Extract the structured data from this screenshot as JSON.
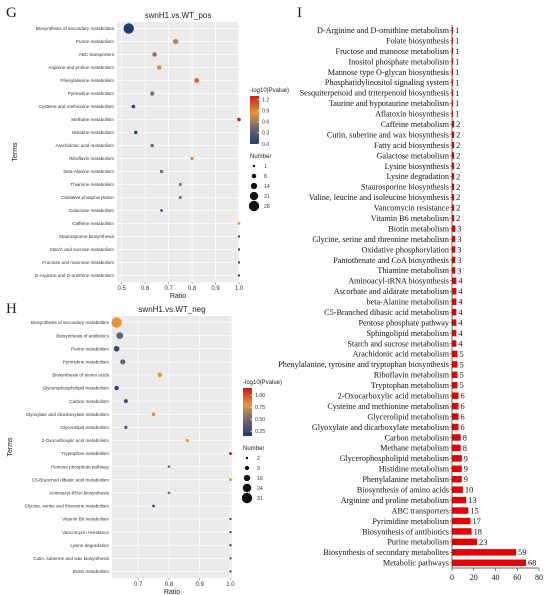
{
  "panel_letters": {
    "g": "G",
    "h": "H",
    "i": "I"
  },
  "chart_data": [
    {
      "type": "scatter",
      "panel": "G",
      "title": "swnH1.vs.WT_pos",
      "xlabel": "Ratio",
      "ylabel": "Terms",
      "xlim": [
        0.48,
        1.0
      ],
      "xticks": [
        "0.5",
        "0.6",
        "0.7",
        "0.8",
        "0.9",
        "1.0"
      ],
      "xtick_values": [
        0.5,
        0.6,
        0.7,
        0.8,
        0.9,
        1.0
      ],
      "grid": true,
      "color_legend": {
        "title": "-log10(Pvalue)",
        "ticks": [
          "1.2",
          "0.9",
          "0.6",
          "0.3",
          "0.0"
        ],
        "range": [
          0.0,
          1.3
        ]
      },
      "size_legend": {
        "title": "Number",
        "ticks": [
          "1",
          "8",
          "14",
          "21",
          "28"
        ]
      },
      "points": [
        {
          "term": "Biosynthesis of secondary metabolites",
          "ratio": 0.53,
          "neglog10p": 0.0,
          "number": 28
        },
        {
          "term": "Purine metabolism",
          "ratio": 0.73,
          "neglog10p": 0.7,
          "number": 11
        },
        {
          "term": "ABC transporters",
          "ratio": 0.64,
          "neglog10p": 0.55,
          "number": 8
        },
        {
          "term": "Arginine and proline metabolism",
          "ratio": 0.66,
          "neglog10p": 0.8,
          "number": 8
        },
        {
          "term": "Phenylalanine metabolism",
          "ratio": 0.82,
          "neglog10p": 1.05,
          "number": 9
        },
        {
          "term": "Pyrimidine metabolism",
          "ratio": 0.63,
          "neglog10p": 0.5,
          "number": 7
        },
        {
          "term": "Cysteine and methionine metabolism",
          "ratio": 0.55,
          "neglog10p": 0.05,
          "number": 5
        },
        {
          "term": "Methane metabolism",
          "ratio": 1.0,
          "neglog10p": 1.3,
          "number": 5
        },
        {
          "term": "Histidine metabolism",
          "ratio": 0.56,
          "neglog10p": 0.05,
          "number": 5
        },
        {
          "term": "Arachidonic acid metabolism",
          "ratio": 0.63,
          "neglog10p": 0.45,
          "number": 5
        },
        {
          "term": "Riboflavin metabolism",
          "ratio": 0.8,
          "neglog10p": 0.75,
          "number": 4
        },
        {
          "term": "beta-Alanine metabolism",
          "ratio": 0.67,
          "neglog10p": 0.45,
          "number": 4
        },
        {
          "term": "Thiamine metabolism",
          "ratio": 0.75,
          "neglog10p": 0.45,
          "number": 3
        },
        {
          "term": "Oxidative phosphorylation",
          "ratio": 0.75,
          "neglog10p": 0.45,
          "number": 3
        },
        {
          "term": "Galactose metabolism",
          "ratio": 0.67,
          "neglog10p": 0.1,
          "number": 2
        },
        {
          "term": "Caffeine metabolism",
          "ratio": 1.0,
          "neglog10p": 0.8,
          "number": 2
        },
        {
          "term": "Staurosporine biosynthesis",
          "ratio": 1.0,
          "neglog10p": 0.15,
          "number": 1
        },
        {
          "term": "Starch and sucrose metabolism",
          "ratio": 1.0,
          "neglog10p": 0.15,
          "number": 1
        },
        {
          "term": "Fructose and mannose metabolism",
          "ratio": 1.0,
          "neglog10p": 0.15,
          "number": 1
        },
        {
          "term": "D-Arginine and D-ornithine metabolism",
          "ratio": 1.0,
          "neglog10p": 0.15,
          "number": 1
        }
      ]
    },
    {
      "type": "scatter",
      "panel": "H",
      "title": "swnH1.vs.WT_neg",
      "xlabel": "Ratio",
      "ylabel": "Terms",
      "xlim": [
        0.615,
        1.005
      ],
      "xticks": [
        "0.7",
        "0.8",
        "0.9",
        "1.0"
      ],
      "xtick_values": [
        0.7,
        0.8,
        0.9,
        1.0
      ],
      "grid": true,
      "color_legend": {
        "title": "-log10(Pvalue)",
        "ticks": [
          "1.00",
          "0.75",
          "0.50",
          "0.25"
        ],
        "range": [
          0.15,
          1.15
        ]
      },
      "size_legend": {
        "title": "Number",
        "ticks": [
          "2",
          "9",
          "16",
          "24",
          "31"
        ]
      },
      "points": [
        {
          "term": "Biosynthesis of secondary metabolites",
          "ratio": 0.63,
          "neglog10p": 0.8,
          "number": 31
        },
        {
          "term": "Biosynthesis of antibiotics",
          "ratio": 0.64,
          "neglog10p": 0.45,
          "number": 18
        },
        {
          "term": "Purine metabolism",
          "ratio": 0.63,
          "neglog10p": 0.25,
          "number": 14
        },
        {
          "term": "Pyrimidine metabolism",
          "ratio": 0.65,
          "neglog10p": 0.45,
          "number": 12
        },
        {
          "term": "Biosynthesis of amino acids",
          "ratio": 0.77,
          "neglog10p": 0.8,
          "number": 10
        },
        {
          "term": "Glycerophospholipid metabolism",
          "ratio": 0.63,
          "neglog10p": 0.2,
          "number": 9
        },
        {
          "term": "Carbon metabolism",
          "ratio": 0.66,
          "neglog10p": 0.3,
          "number": 8
        },
        {
          "term": "Glyoxylate and dicarboxylate metabolism",
          "ratio": 0.75,
          "neglog10p": 0.75,
          "number": 6
        },
        {
          "term": "Glycerolipid metabolism",
          "ratio": 0.66,
          "neglog10p": 0.35,
          "number": 5
        },
        {
          "term": "2-Oxocarboxylic acid metabolism",
          "ratio": 0.86,
          "neglog10p": 0.8,
          "number": 5
        },
        {
          "term": "Tryptophan metabolism",
          "ratio": 1.0,
          "neglog10p": 1.15,
          "number": 4
        },
        {
          "term": "Pentose phosphate pathway",
          "ratio": 0.8,
          "neglog10p": 0.55,
          "number": 3
        },
        {
          "term": "C5-Branched dibasic acid metabolism",
          "ratio": 1.0,
          "neglog10p": 0.85,
          "number": 3
        },
        {
          "term": "Aminoacyl-tRNA biosynthesis",
          "ratio": 0.8,
          "neglog10p": 0.55,
          "number": 3
        },
        {
          "term": "Glycine, serine and threonine metabolism",
          "ratio": 0.75,
          "neglog10p": 0.2,
          "number": 3
        },
        {
          "term": "Vitamin B6 metabolism",
          "ratio": 1.0,
          "neglog10p": 0.3,
          "number": 2
        },
        {
          "term": "Vancomycin resistance",
          "ratio": 1.0,
          "neglog10p": 0.3,
          "number": 2
        },
        {
          "term": "Lysine degradation",
          "ratio": 1.0,
          "neglog10p": 0.3,
          "number": 2
        },
        {
          "term": "Cutin, suberine and wax biosynthesis",
          "ratio": 1.0,
          "neglog10p": 0.3,
          "number": 2
        },
        {
          "term": "Biotin metabolism",
          "ratio": 1.0,
          "neglog10p": 0.3,
          "number": 2
        }
      ]
    },
    {
      "type": "bar",
      "panel": "I",
      "orientation": "horizontal",
      "xlim": [
        0,
        80
      ],
      "xticks": [
        "0",
        "20",
        "40",
        "60",
        "80"
      ],
      "xtick_values": [
        0,
        20,
        40,
        60,
        80
      ],
      "bar_color": "#e60000",
      "categories": [
        "D-Arginine and D-ornithine metabolism",
        "Folate biosynthesis",
        "Fructose and mannose metabolism",
        "Inositol phosphate metabolism",
        "Mannose type O-glycan biosynthesis",
        "Phosphatidylinositol signaling system",
        "Sesquiterpenoid and triterpenoid biosynthesis",
        "Taurine and hypotaurine metabolism",
        "Aflatoxin biosynthesis",
        "Caffeine metabolism",
        "Cutin, suberine and wax biosynthesis",
        "Fatty acid biosynthesis",
        "Galactose metabolism",
        "Lysine biosynthesis",
        "Lysine degradation",
        "Staurosporine biosynthesis",
        "Valine, leucine and isoleucine biosynthesis",
        "Vancomycin resistance",
        "Vitamin B6 metabolism",
        "Biotin metabolism",
        "Glycine, serine and threonine metabolism",
        "Oxidative phosphorylation",
        "Pantothenate and CoA biosynthesis",
        "Thiamine metabolism",
        "Aminoacyl-tRNA biosynthesis",
        "Ascorbate and aldarate metabolism",
        "beta-Alanine metabolism",
        "C5-Branched dibasic acid metabolism",
        "Pentose phosphate pathway",
        "Sphingolipid metabolism",
        "Starch and sucrose metabolism",
        "Arachidonic acid metabolism",
        "Phenylalanine, tyrosine and tryptophan biosynthesis",
        "Riboflavin metabolism",
        "Tryptophan metabolism",
        "2-Oxocarboxylic acid metabolism",
        "Cysteine and methionine metabolism",
        "Glycerolipid metabolism",
        "Glyoxylate and dicarboxylate metabolism",
        "Carbon metabolism",
        "Methane metabolism",
        "Glycerophospholipid metabolism",
        "Histidine metabolism",
        "Phenylalanine metabolism",
        "Biosynthesis of amino acids",
        "Arginine and proline metabolism",
        "ABC transporters",
        "Pyrimidine metabolism",
        "Biosynthesis of antibiotics",
        "Purine metabolism",
        "Biosynthesis of secondary metabolites",
        "Metabolic pathways"
      ],
      "values": [
        1,
        1,
        1,
        1,
        1,
        1,
        1,
        1,
        1,
        2,
        2,
        2,
        2,
        2,
        2,
        2,
        2,
        2,
        2,
        3,
        3,
        3,
        3,
        3,
        4,
        4,
        4,
        4,
        4,
        4,
        4,
        5,
        5,
        5,
        5,
        6,
        6,
        6,
        6,
        8,
        8,
        9,
        9,
        9,
        10,
        13,
        15,
        17,
        18,
        23,
        59,
        68
      ]
    }
  ]
}
